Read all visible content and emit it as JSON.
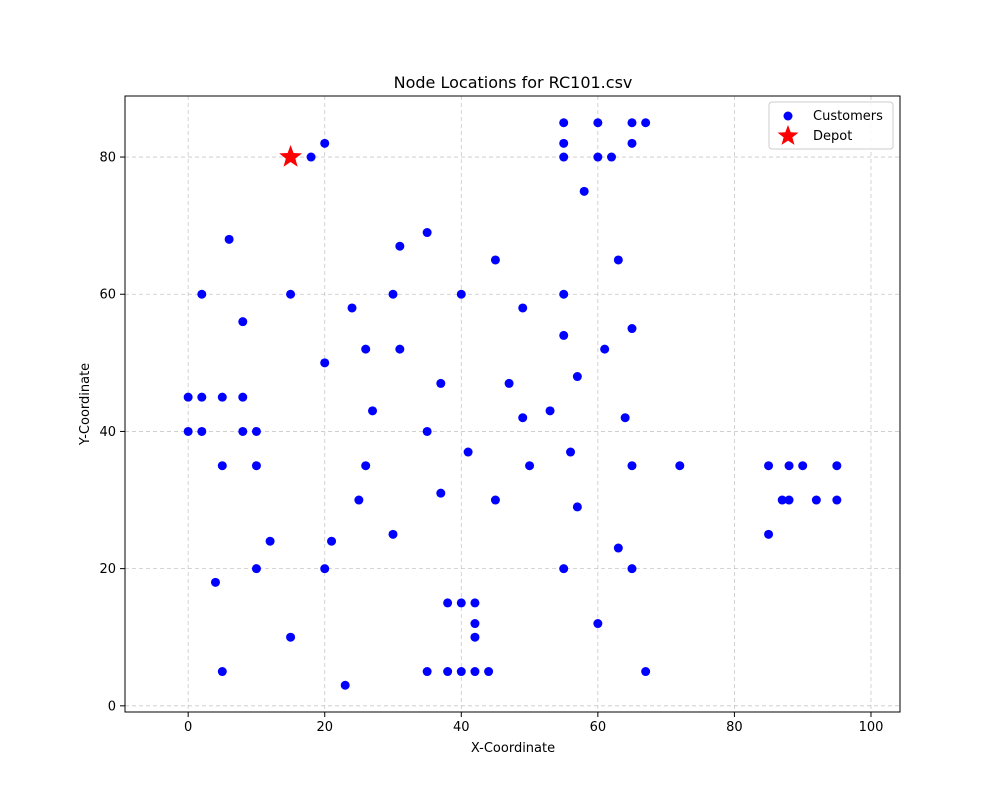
{
  "chart_data": {
    "type": "scatter",
    "title": "Node Locations for RC101.csv",
    "xlabel": "X-Coordinate",
    "ylabel": "Y-Coordinate",
    "xlim": [
      -9.25,
      104.25
    ],
    "ylim": [
      -0.9,
      88.9
    ],
    "xticks": [
      0,
      20,
      40,
      60,
      80,
      100
    ],
    "yticks": [
      0,
      20,
      40,
      60,
      80
    ],
    "grid": true,
    "legend_position": "top-right",
    "series": [
      {
        "name": "Customers",
        "marker": "circle",
        "color": "#0000ff",
        "points": [
          [
            20,
            82
          ],
          [
            18,
            80
          ],
          [
            55,
            85
          ],
          [
            60,
            85
          ],
          [
            65,
            85
          ],
          [
            67,
            85
          ],
          [
            55,
            82
          ],
          [
            65,
            82
          ],
          [
            55,
            80
          ],
          [
            60,
            80
          ],
          [
            62,
            80
          ],
          [
            58,
            75
          ],
          [
            6,
            68
          ],
          [
            35,
            69
          ],
          [
            31,
            67
          ],
          [
            45,
            65
          ],
          [
            63,
            65
          ],
          [
            2,
            60
          ],
          [
            15,
            60
          ],
          [
            30,
            60
          ],
          [
            40,
            60
          ],
          [
            55,
            60
          ],
          [
            24,
            58
          ],
          [
            49,
            58
          ],
          [
            8,
            56
          ],
          [
            65,
            55
          ],
          [
            55,
            54
          ],
          [
            26,
            52
          ],
          [
            31,
            52
          ],
          [
            61,
            52
          ],
          [
            20,
            50
          ],
          [
            57,
            48
          ],
          [
            37,
            47
          ],
          [
            47,
            47
          ],
          [
            0,
            45
          ],
          [
            2,
            45
          ],
          [
            5,
            45
          ],
          [
            8,
            45
          ],
          [
            27,
            43
          ],
          [
            53,
            43
          ],
          [
            49,
            42
          ],
          [
            64,
            42
          ],
          [
            0,
            40
          ],
          [
            2,
            40
          ],
          [
            8,
            40
          ],
          [
            10,
            40
          ],
          [
            35,
            40
          ],
          [
            41,
            37
          ],
          [
            56,
            37
          ],
          [
            5,
            35
          ],
          [
            10,
            35
          ],
          [
            26,
            35
          ],
          [
            50,
            35
          ],
          [
            65,
            35
          ],
          [
            72,
            35
          ],
          [
            85,
            35
          ],
          [
            88,
            35
          ],
          [
            90,
            35
          ],
          [
            95,
            35
          ],
          [
            37,
            31
          ],
          [
            25,
            30
          ],
          [
            45,
            30
          ],
          [
            87,
            30
          ],
          [
            88,
            30
          ],
          [
            92,
            30
          ],
          [
            95,
            30
          ],
          [
            57,
            29
          ],
          [
            30,
            25
          ],
          [
            85,
            25
          ],
          [
            12,
            24
          ],
          [
            21,
            24
          ],
          [
            63,
            23
          ],
          [
            10,
            20
          ],
          [
            20,
            20
          ],
          [
            55,
            20
          ],
          [
            65,
            20
          ],
          [
            4,
            18
          ],
          [
            38,
            15
          ],
          [
            40,
            15
          ],
          [
            42,
            15
          ],
          [
            42,
            12
          ],
          [
            60,
            12
          ],
          [
            15,
            10
          ],
          [
            42,
            10
          ],
          [
            5,
            5
          ],
          [
            35,
            5
          ],
          [
            38,
            5
          ],
          [
            40,
            5
          ],
          [
            42,
            5
          ],
          [
            44,
            5
          ],
          [
            67,
            5
          ],
          [
            23,
            3
          ]
        ]
      },
      {
        "name": "Depot",
        "marker": "star",
        "color": "#ff0000",
        "points": [
          [
            15,
            80
          ]
        ]
      }
    ]
  }
}
